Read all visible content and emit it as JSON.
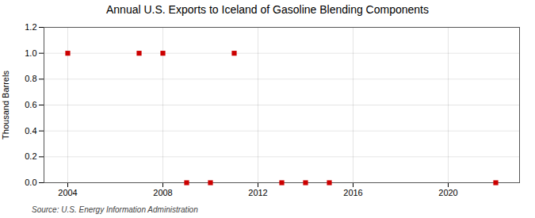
{
  "chart_data": {
    "type": "scatter",
    "title": "Annual U.S. Exports to Iceland of Gasoline Blending Components",
    "ylabel": "Thousand Barrels",
    "caption": "Source: U.S. Energy Information Administration",
    "x": [
      2004,
      2007,
      2008,
      2009,
      2010,
      2011,
      2013,
      2014,
      2015,
      2022
    ],
    "values": [
      1.0,
      1.0,
      1.0,
      0.0,
      0.0,
      1.0,
      0.0,
      0.0,
      0.0,
      0.0
    ],
    "color": "#cc0000",
    "marker": "square",
    "xlim": [
      2003,
      2023
    ],
    "ylim": [
      0.0,
      1.2
    ],
    "xticks": [
      2004,
      2008,
      2012,
      2016,
      2020
    ],
    "yticks": [
      {
        "value": 0.0,
        "label": "0.0"
      },
      0.2,
      0.4,
      0.6,
      0.8,
      {
        "value": 1.0,
        "label": "1.0"
      },
      1.2
    ],
    "grid": true
  }
}
